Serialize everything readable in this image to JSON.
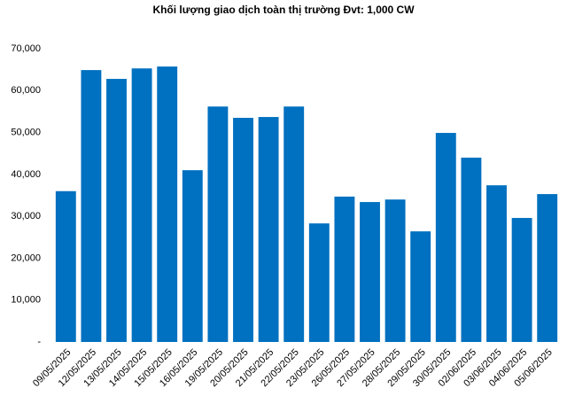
{
  "chart_data": {
    "type": "bar",
    "title": "Khối lượng giao dịch toàn thị trường Đvt: 1,000 CW",
    "categories": [
      "09/05/2025",
      "12/05/2025",
      "13/05/2025",
      "14/05/2025",
      "15/05/2025",
      "16/05/2025",
      "19/05/2025",
      "20/05/2025",
      "21/05/2025",
      "22/05/2025",
      "23/05/2025",
      "26/05/2025",
      "27/05/2025",
      "28/05/2025",
      "29/05/2025",
      "30/05/2025",
      "02/06/2025",
      "03/06/2025",
      "04/06/2025",
      "05/06/2025"
    ],
    "values": [
      36000,
      64900,
      62800,
      65300,
      65750,
      41000,
      56200,
      53500,
      53700,
      56200,
      28300,
      34700,
      33400,
      34000,
      26400,
      49900,
      44000,
      37400,
      29600,
      35300
    ],
    "color": "#0070c0",
    "ylim": [
      0,
      70000
    ],
    "yticks": [
      {
        "value": 0,
        "label": "-"
      },
      {
        "value": 10000,
        "label": "10,000"
      },
      {
        "value": 20000,
        "label": "20,000"
      },
      {
        "value": 30000,
        "label": "30,000"
      },
      {
        "value": 40000,
        "label": "40,000"
      },
      {
        "value": 50000,
        "label": "50,000"
      },
      {
        "value": 60000,
        "label": "60,000"
      },
      {
        "value": 70000,
        "label": "70,000"
      }
    ],
    "grid": false
  }
}
